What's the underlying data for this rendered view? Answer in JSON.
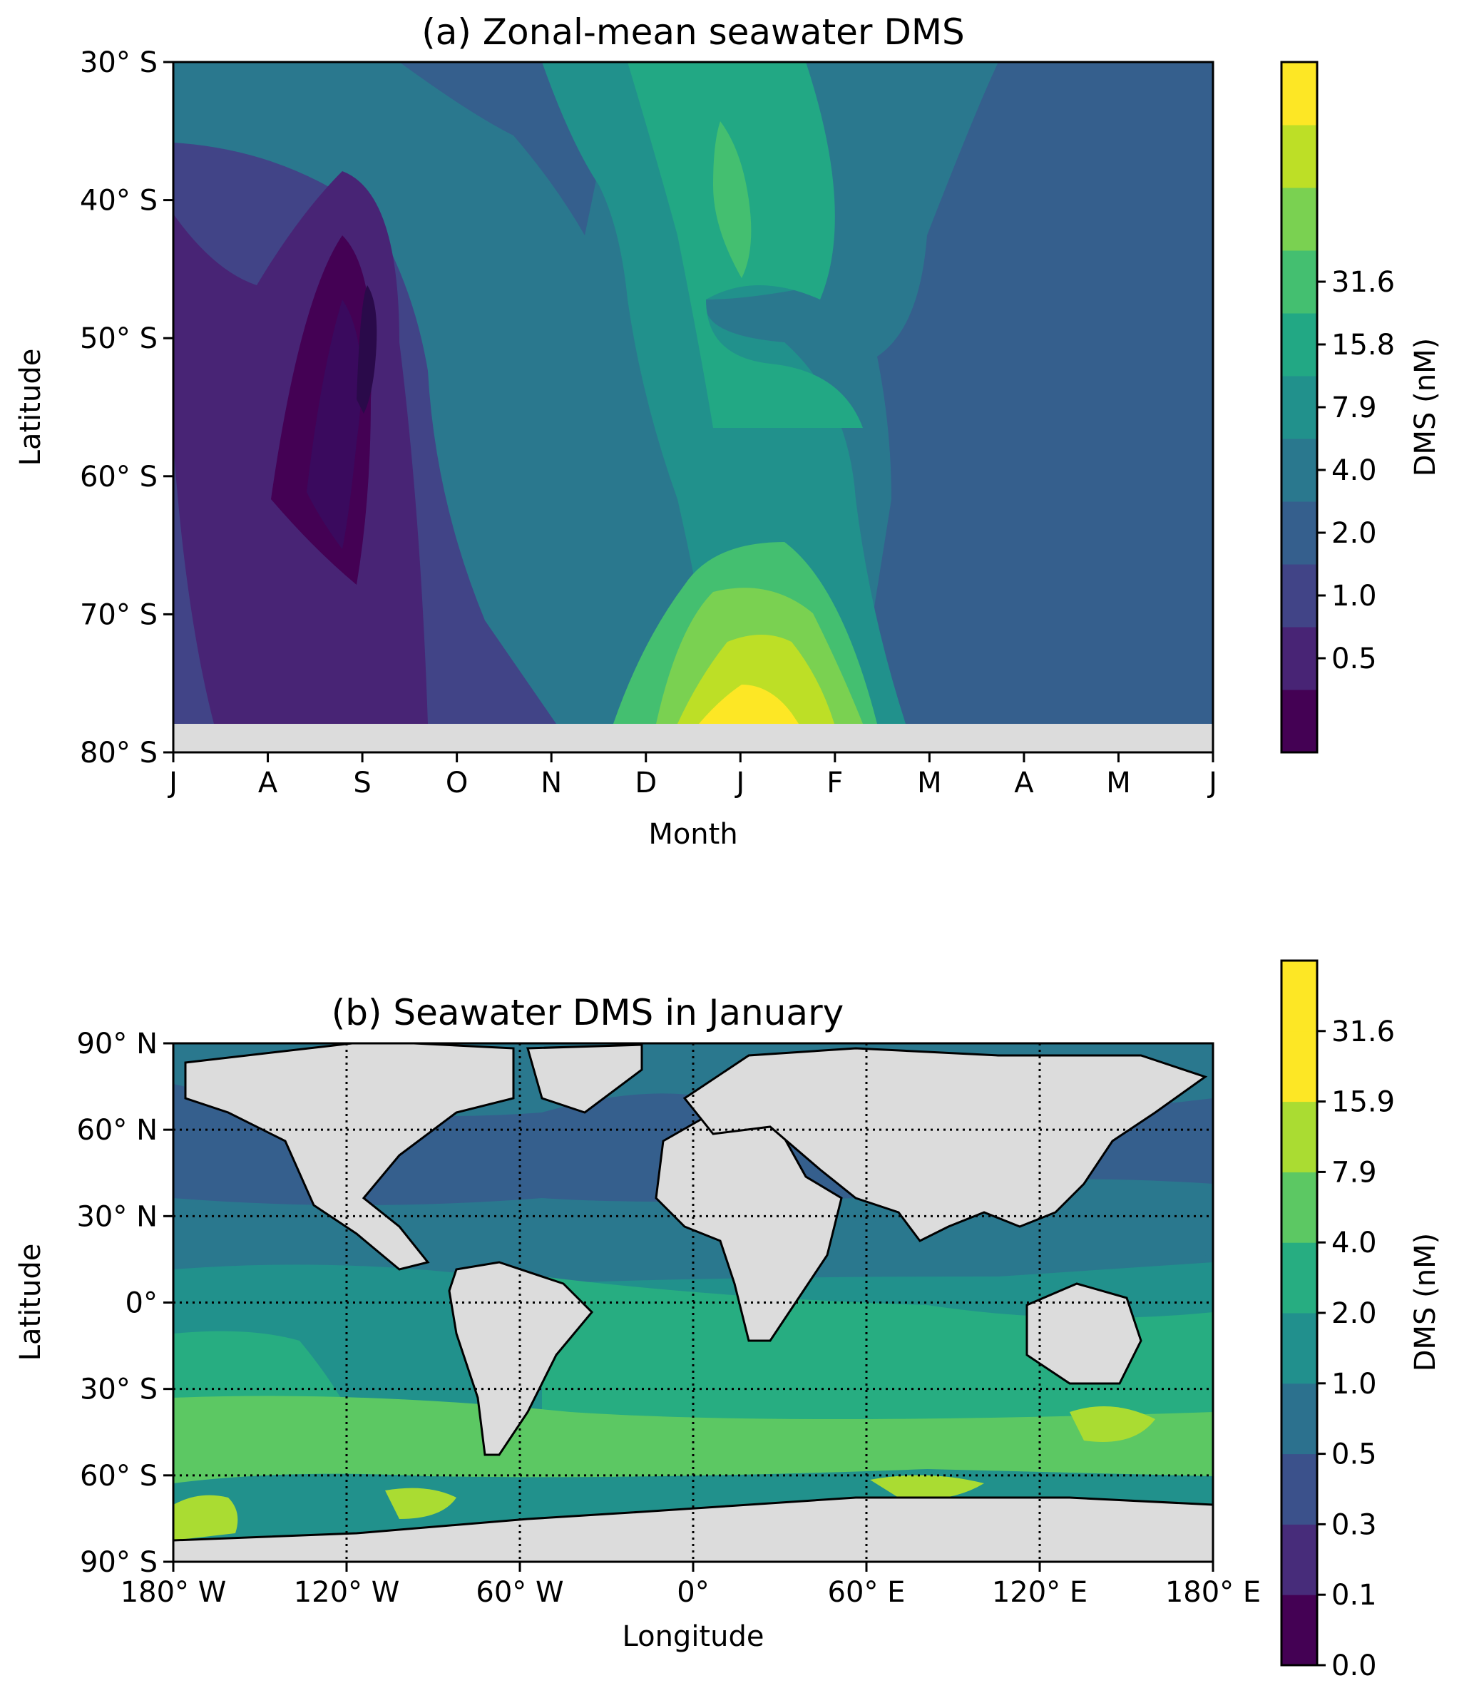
{
  "chart_data": [
    {
      "type": "heatmap",
      "title": "(a) Zonal-mean seawater DMS",
      "xlabel": "Month",
      "ylabel": "Latitude",
      "x_tick_labels": [
        "J",
        "A",
        "S",
        "O",
        "N",
        "D",
        "J",
        "F",
        "M",
        "A",
        "M",
        "J"
      ],
      "y_tick_labels": [
        "30° S",
        "40° S",
        "50° S",
        "60° S",
        "70° S",
        "80° S"
      ],
      "y_ticks_deg": [
        -30,
        -40,
        -50,
        -60,
        -70,
        -80
      ],
      "ylim": [
        -80,
        -30
      ],
      "no_data_below_lat": -78,
      "colorbar": {
        "label": "DMS (nM)",
        "tick_labels": [
          "0.5",
          "1.0",
          "2.0",
          "4.0",
          "7.9",
          "15.8",
          "31.6"
        ],
        "colors": [
          "#440154",
          "#482475",
          "#414487",
          "#355f8d",
          "#2a788e",
          "#21918c",
          "#22a884",
          "#44bf70",
          "#7ad151",
          "#bddf26",
          "#fde725"
        ]
      },
      "levels_index_grid_note": "rows = latitude 30S..78S, columns = Jul..Jun",
      "lat_rows": [
        -30,
        -40,
        -50,
        -60,
        -70,
        -78
      ],
      "months": [
        "Jul",
        "Aug",
        "Sep",
        "Oct",
        "Nov",
        "Dec",
        "Jan",
        "Feb",
        "Mar",
        "Apr",
        "May",
        "Jun"
      ],
      "values_level_index": [
        [
          3,
          3,
          3,
          4,
          4,
          5,
          5,
          5,
          4,
          3,
          3,
          3
        ],
        [
          2,
          2,
          2,
          3,
          4,
          5,
          6,
          5,
          4,
          2,
          2,
          2
        ],
        [
          2,
          1,
          0,
          2,
          4,
          5,
          5,
          4,
          3,
          2,
          1,
          1
        ],
        [
          2,
          1,
          1,
          2,
          4,
          5,
          5,
          4,
          3,
          2,
          1,
          2
        ],
        [
          2,
          2,
          1,
          3,
          4,
          7,
          7,
          6,
          3,
          3,
          3,
          2
        ],
        [
          2,
          2,
          3,
          4,
          5,
          9,
          9,
          8,
          4,
          3,
          3,
          3
        ]
      ]
    },
    {
      "type": "heatmap",
      "title": "(b) Seawater DMS in January",
      "xlabel": "Longitude",
      "ylabel": "Latitude",
      "x_tick_labels": [
        "180° W",
        "120° W",
        "60° W",
        "0°",
        "60° E",
        "120° E",
        "180° E"
      ],
      "x_ticks_deg": [
        -180,
        -120,
        -60,
        0,
        60,
        120,
        180
      ],
      "y_tick_labels": [
        "90° N",
        "60° N",
        "30° N",
        "0°",
        "30° S",
        "60° S",
        "90° S"
      ],
      "y_ticks_deg": [
        90,
        60,
        30,
        0,
        -30,
        -60,
        -90
      ],
      "xlim": [
        -180,
        180
      ],
      "ylim": [
        -90,
        90
      ],
      "grid": true,
      "colorbar": {
        "label": "DMS (nM)",
        "tick_labels": [
          "0.0",
          "0.1",
          "0.3",
          "0.5",
          "1.0",
          "2.0",
          "4.0",
          "7.9",
          "15.9",
          "31.6"
        ],
        "colors": [
          "#440154",
          "#472c7a",
          "#3b518b",
          "#2c718e",
          "#21908d",
          "#27ad81",
          "#5cc863",
          "#aadc32",
          "#fde725"
        ]
      },
      "lat_bands": [
        90,
        60,
        30,
        0,
        -30,
        -60,
        -90
      ],
      "values_level_index_by_band": [
        4,
        3,
        4,
        5,
        5,
        6
      ]
    }
  ]
}
